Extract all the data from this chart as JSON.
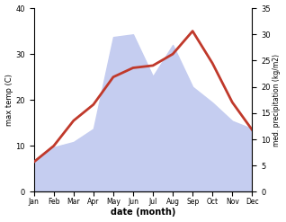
{
  "months": [
    "Jan",
    "Feb",
    "Mar",
    "Apr",
    "May",
    "Jun",
    "Jul",
    "Aug",
    "Sep",
    "Oct",
    "Nov",
    "Dec"
  ],
  "max_temp": [
    6.5,
    10.0,
    15.5,
    19.0,
    25.0,
    27.0,
    27.5,
    30.0,
    35.0,
    28.0,
    19.5,
    13.5
  ],
  "precipitation": [
    6.0,
    8.5,
    9.5,
    12.0,
    29.5,
    30.0,
    22.0,
    28.0,
    20.0,
    17.0,
    13.5,
    12.0
  ],
  "temp_color": "#c0392b",
  "precip_fill_color": "#c5cdf0",
  "temp_ylim": [
    0,
    40
  ],
  "precip_ylim": [
    0,
    35
  ],
  "temp_yticks": [
    0,
    10,
    20,
    30,
    40
  ],
  "precip_yticks": [
    0,
    5,
    10,
    15,
    20,
    25,
    30,
    35
  ],
  "ylabel_left": "max temp (C)",
  "ylabel_right": "med. precipitation (kg/m2)",
  "xlabel": "date (month)",
  "bg_color": "#ffffff",
  "line_width": 2.0
}
